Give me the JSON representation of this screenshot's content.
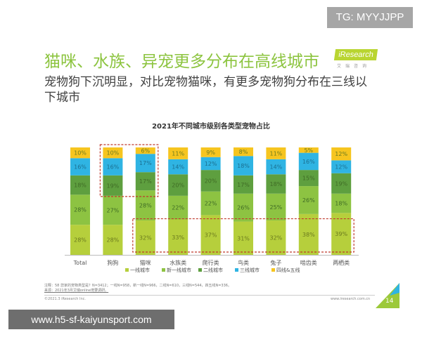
{
  "watermark_top": "TG: MYYJJPP",
  "watermark_bottom": "www.h5-sf-kaiyunsport.com",
  "slide": {
    "title": "猫咪、水族、异宠更多分布在高线城市",
    "subtitle": "宠物狗下沉明显，对比宠物猫咪，有更多宠物狗分布在三线以下城市",
    "logo_text": "iResearch",
    "logo_sub": "艾瑞咨询",
    "note": "注释：58 您家的宠物类型是？N=3412；一线N=958，新一线N=966，二线N=610，三线N=544，四五线N=336。",
    "source": "来源：2021年3月艾瑞online宠要调研。",
    "copyright": "©2021.3 iResearch Inc.",
    "website": "www.iresearch.com.cn",
    "page_number": "14"
  },
  "chart_data": {
    "type": "bar",
    "stacked": true,
    "title": "2021年不同城市级别各类型宠物占比",
    "categories": [
      "Total",
      "狗狗",
      "猫咪",
      "水族类",
      "爬行类",
      "鸟类",
      "兔子",
      "啮齿类",
      "两栖类"
    ],
    "unit": "%",
    "ylim": [
      0,
      100
    ],
    "grid": false,
    "legend_position": "bottom",
    "series": [
      {
        "name": "一线城市",
        "color": "#b6cf3c",
        "values": [
          28,
          28,
          32,
          33,
          37,
          31,
          32,
          38,
          39
        ]
      },
      {
        "name": "新一线城市",
        "color": "#8dc342",
        "values": [
          28,
          27,
          28,
          22,
          22,
          26,
          25,
          26,
          18
        ]
      },
      {
        "name": "二线城市",
        "color": "#5e9f3f",
        "values": [
          18,
          19,
          17,
          20,
          20,
          17,
          18,
          15,
          19
        ]
      },
      {
        "name": "三线城市",
        "color": "#2fb4e3",
        "values": [
          16,
          16,
          17,
          14,
          12,
          18,
          14,
          16,
          12
        ]
      },
      {
        "name": "四线&五线",
        "color": "#f6c51f",
        "values": [
          10,
          10,
          6,
          11,
          9,
          8,
          11,
          5,
          12
        ]
      }
    ],
    "highlights": [
      {
        "categories": [
          "狗狗",
          "猫咪"
        ],
        "series": [
          "二线城市",
          "三线城市",
          "四线&五线"
        ],
        "color": "#c0392b"
      },
      {
        "categories": [
          "猫咪",
          "水族类",
          "爬行类",
          "鸟类",
          "兔子",
          "啮齿类",
          "两栖类"
        ],
        "series": [
          "一线城市"
        ],
        "color": "#c0392b"
      }
    ]
  }
}
